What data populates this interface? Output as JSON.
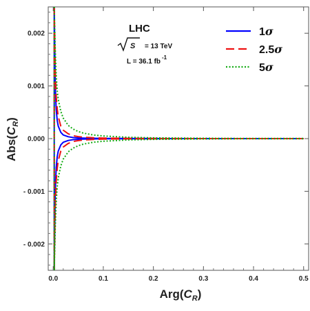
{
  "chart_data": {
    "type": "line",
    "xlabel": {
      "main": "Arg(",
      "var": "C",
      "sub": "R",
      "close": ")"
    },
    "ylabel": {
      "main": "Abs(",
      "var": "C",
      "sub": "R",
      "close": ")"
    },
    "xlim": [
      -0.01,
      0.51
    ],
    "ylim": [
      -0.0025,
      0.0025
    ],
    "x_ticks": [
      0.0,
      0.1,
      0.2,
      0.3,
      0.4,
      0.5
    ],
    "x_tick_labels": [
      "0.0",
      "0.1",
      "0.2",
      "0.3",
      "0.4",
      "0.5"
    ],
    "y_ticks": [
      0.002,
      0.001,
      0.0,
      -0.001,
      -0.002
    ],
    "y_tick_labels": [
      "0.002",
      "0.001",
      "0.000",
      "- 0.001",
      "- 0.002"
    ],
    "grid": false,
    "legend_position": "top-right",
    "annotations": {
      "collider": "LHC",
      "energy_symbol": "S",
      "energy_value": "= 13 TeV",
      "luminosity": "L = 36.1 fb",
      "luminosity_exp": "-1"
    },
    "series": [
      {
        "name": "1σ",
        "legend_number": "1",
        "color": "#0000ff",
        "style": "solid",
        "x": [
          0.002,
          0.004,
          0.006,
          0.008,
          0.01,
          0.015,
          0.02,
          0.03,
          0.04,
          0.05,
          0.06,
          0.08,
          0.1,
          0.15,
          0.2,
          0.3,
          0.4,
          0.5
        ],
        "upper": [
          0.0025,
          0.001,
          0.00055,
          0.00034,
          0.00024,
          0.00012,
          7e-05,
          3.5e-05,
          2e-05,
          1.3e-05,
          1e-05,
          6e-06,
          4e-06,
          2e-06,
          1e-06,
          0.0,
          0.0,
          0.0
        ]
      },
      {
        "name": "2.5σ",
        "legend_number": "2.5",
        "color": "#ee1111",
        "style": "dashed",
        "x": [
          0.002,
          0.004,
          0.006,
          0.008,
          0.01,
          0.015,
          0.02,
          0.03,
          0.04,
          0.05,
          0.06,
          0.08,
          0.1,
          0.15,
          0.2,
          0.3,
          0.4,
          0.5
        ],
        "upper": [
          0.0025,
          0.0013,
          0.0008,
          0.00056,
          0.00042,
          0.00024,
          0.00016,
          9e-05,
          5.5e-05,
          3.8e-05,
          2.7e-05,
          1.6e-05,
          1e-05,
          5e-06,
          3e-06,
          0.0,
          0.0,
          0.0
        ]
      },
      {
        "name": "5σ",
        "legend_number": "5",
        "color": "#11aa11",
        "style": "dotted",
        "x": [
          0.002,
          0.004,
          0.006,
          0.008,
          0.01,
          0.015,
          0.02,
          0.03,
          0.04,
          0.05,
          0.06,
          0.08,
          0.1,
          0.15,
          0.2,
          0.3,
          0.4,
          0.5
        ],
        "upper": [
          0.0025,
          0.0017,
          0.0012,
          0.00091,
          0.00075,
          0.00052,
          0.00039,
          0.00025,
          0.00018,
          0.000135,
          0.000105,
          7e-05,
          5e-05,
          2.5e-05,
          1.5e-05,
          6e-06,
          3e-06,
          2e-06
        ]
      }
    ]
  }
}
